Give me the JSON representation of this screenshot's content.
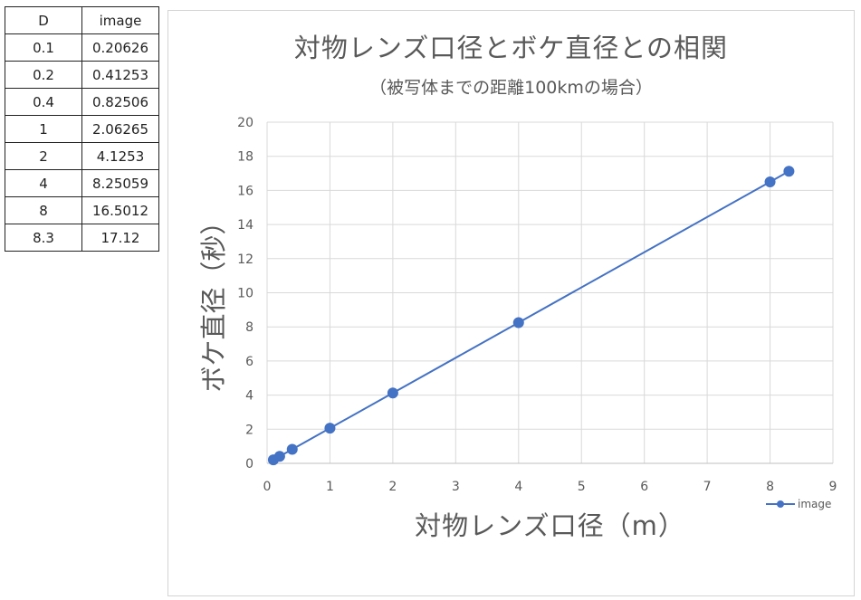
{
  "table": {
    "headers": [
      "D",
      "image"
    ],
    "rows": [
      [
        "0.1",
        "0.20626"
      ],
      [
        "0.2",
        "0.41253"
      ],
      [
        "0.4",
        "0.82506"
      ],
      [
        "1",
        "2.06265"
      ],
      [
        "2",
        "4.1253"
      ],
      [
        "4",
        "8.25059"
      ],
      [
        "8",
        "16.5012"
      ],
      [
        "8.3",
        "17.12"
      ]
    ]
  },
  "chart_data": {
    "type": "scatter",
    "title": "対物レンズ口径とボケ直径との相関",
    "subtitle": "（被写体までの距離100kmの場合）",
    "xlabel": "対物レンズ口径（m）",
    "ylabel": "ボケ直径（秒）",
    "xlim": [
      0,
      9
    ],
    "ylim": [
      0,
      20
    ],
    "x_ticks": [
      "0",
      "1",
      "2",
      "3",
      "4",
      "5",
      "6",
      "7",
      "8",
      "9"
    ],
    "y_ticks": [
      "0",
      "2",
      "4",
      "6",
      "8",
      "10",
      "12",
      "14",
      "16",
      "18",
      "20"
    ],
    "grid": true,
    "legend_position": "bottom-right",
    "series": [
      {
        "name": "image",
        "color": "#4472c4",
        "points": [
          [
            0.1,
            0.20626
          ],
          [
            0.2,
            0.41253
          ],
          [
            0.4,
            0.82506
          ],
          [
            1,
            2.06265
          ],
          [
            2,
            4.1253
          ],
          [
            4,
            8.25059
          ],
          [
            8,
            16.5012
          ],
          [
            8.3,
            17.12
          ]
        ]
      }
    ]
  }
}
